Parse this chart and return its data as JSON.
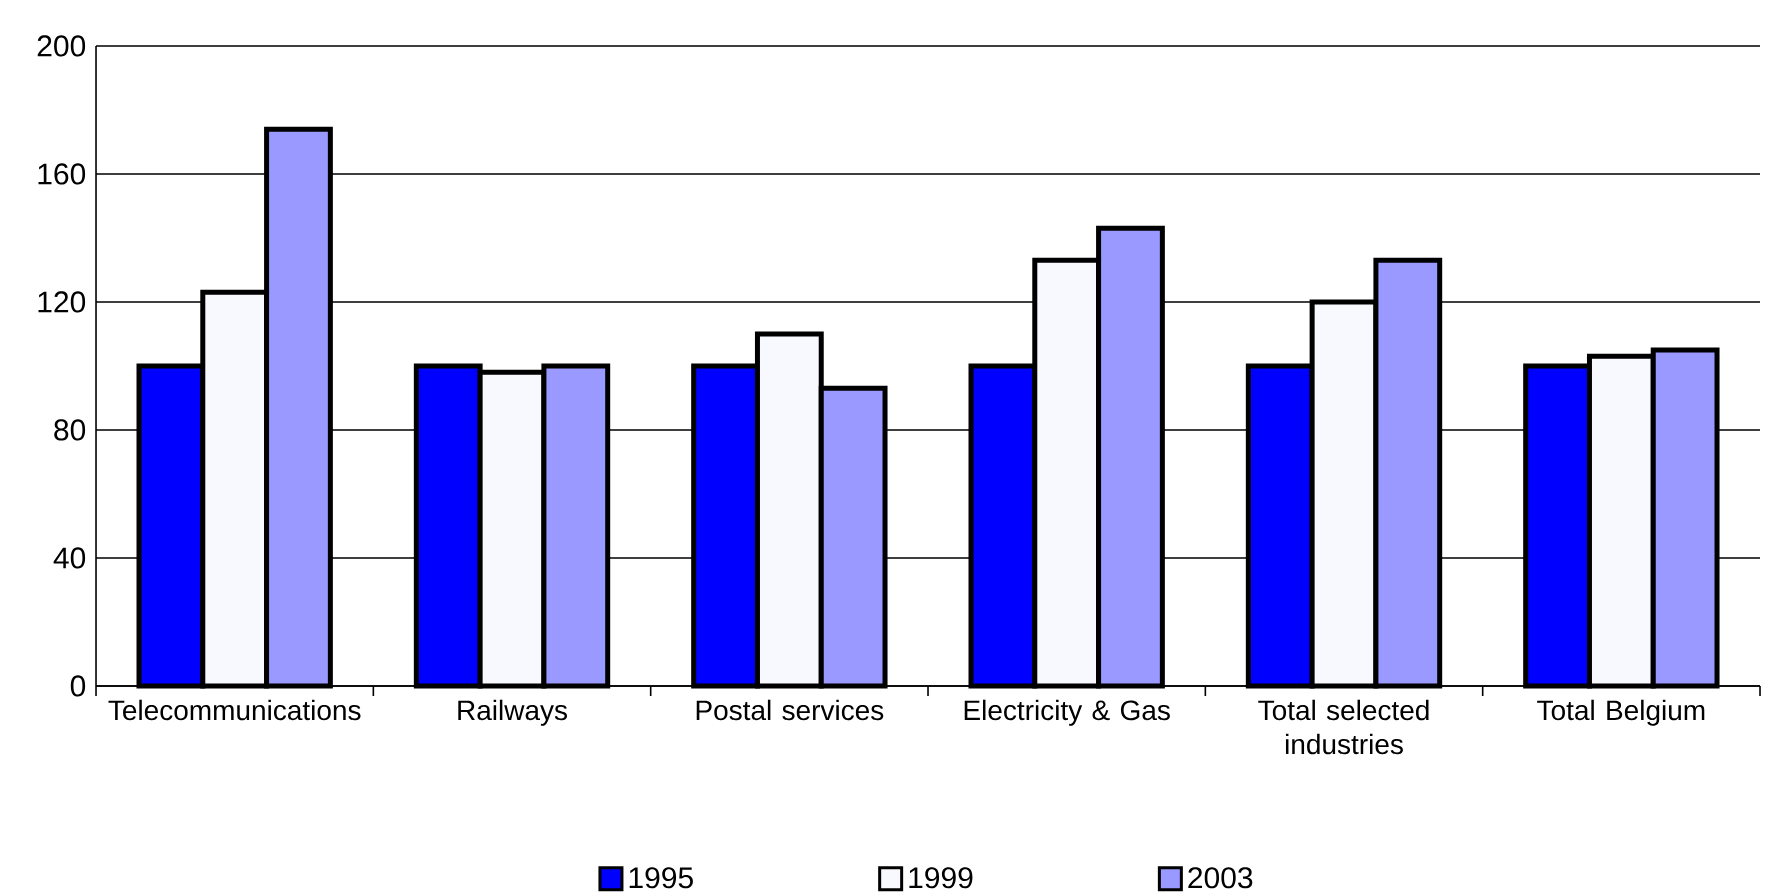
{
  "chart_data": {
    "type": "bar",
    "categories": [
      "Telecommunications",
      "Railways",
      "Postal services",
      "Electricity & Gas",
      "Total selected industries",
      "Total Belgium"
    ],
    "series": [
      {
        "name": "1995",
        "color": "#0000ff",
        "values": [
          100,
          100,
          100,
          100,
          100,
          100
        ]
      },
      {
        "name": "1999",
        "color": "#f8f8ff",
        "values": [
          123,
          98,
          110,
          133,
          120,
          103
        ]
      },
      {
        "name": "2003",
        "color": "#9999ff",
        "values": [
          174,
          100,
          93,
          143,
          133,
          105
        ]
      }
    ],
    "ylim": [
      0,
      200
    ],
    "yticks": [
      0,
      40,
      80,
      120,
      160,
      200
    ],
    "grid": "y",
    "legend": "bottom"
  }
}
